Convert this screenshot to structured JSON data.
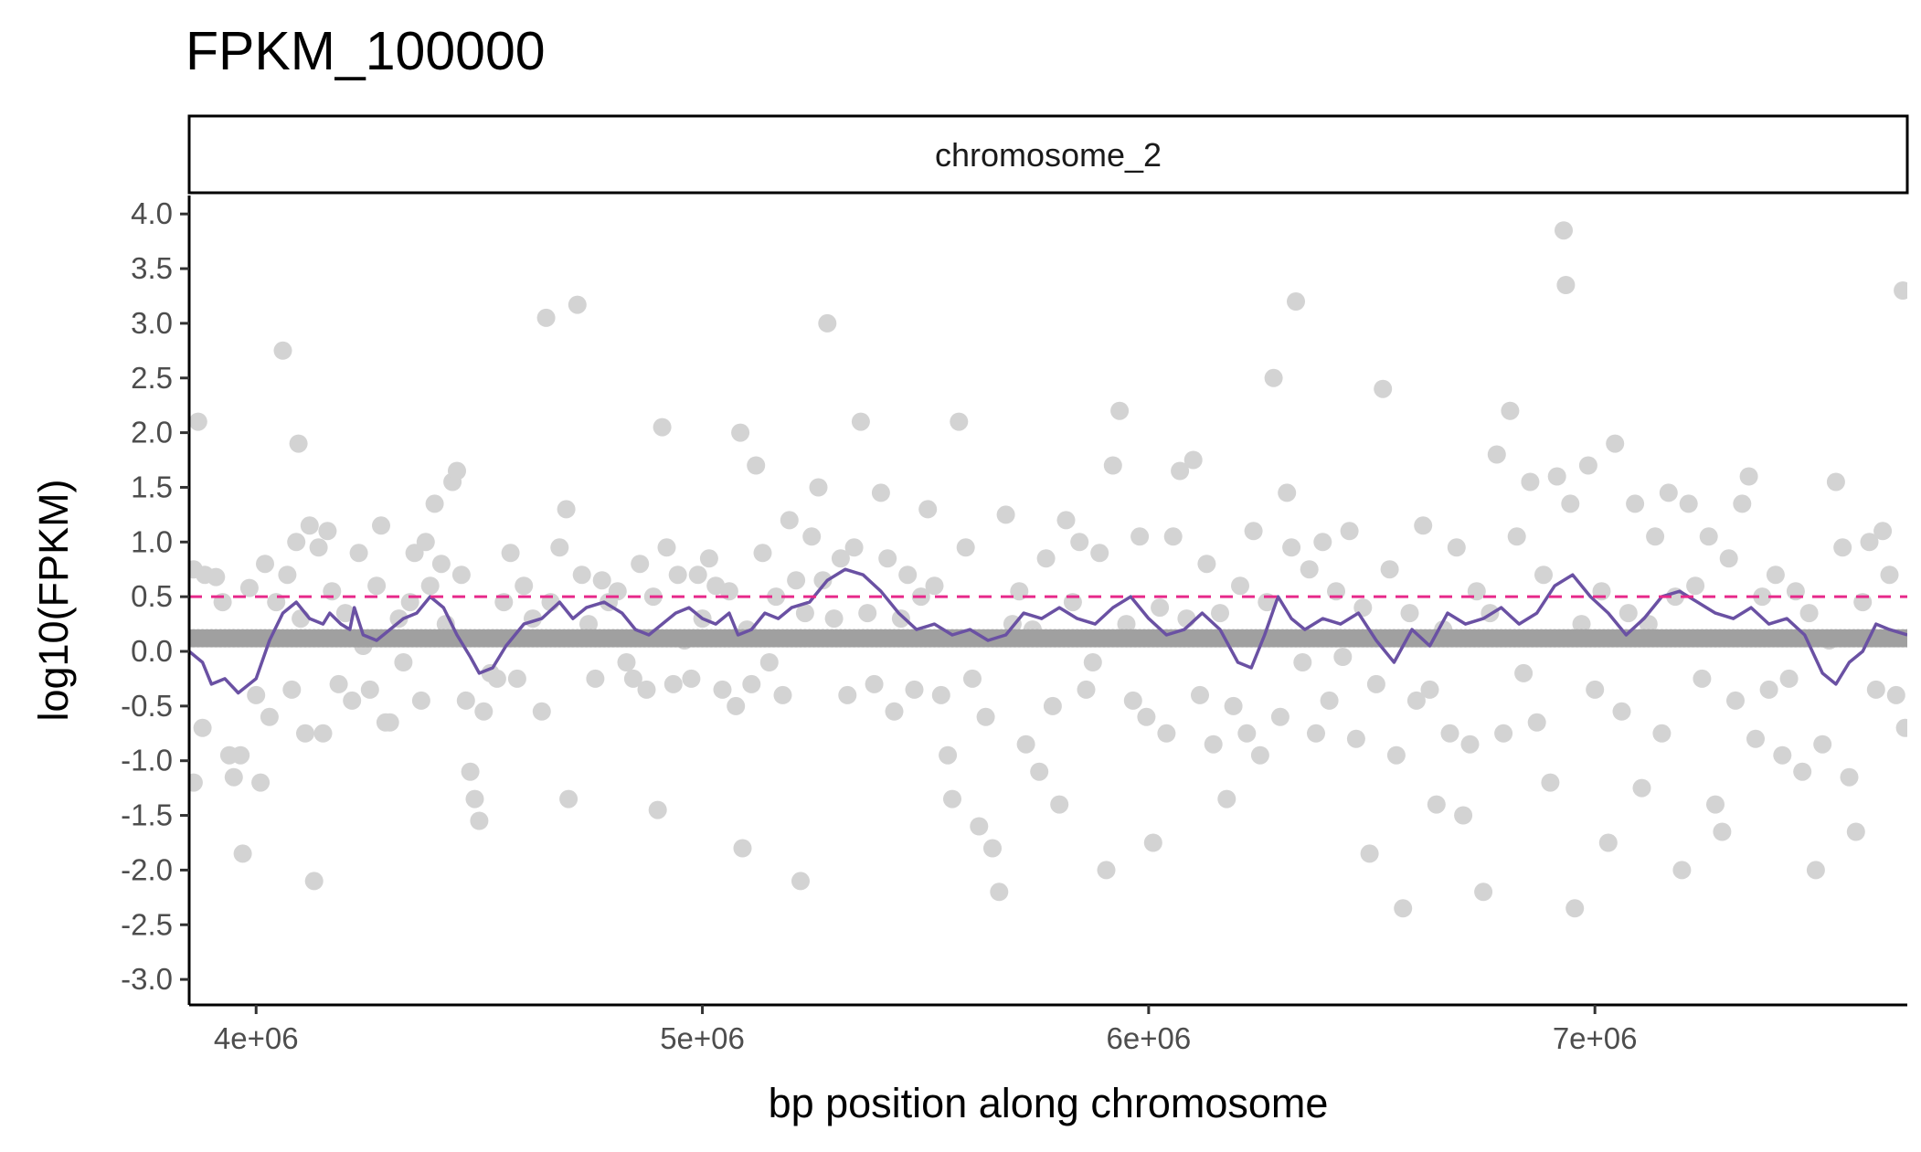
{
  "chart_data": {
    "type": "scatter",
    "title": "FPKM_100000",
    "facet_label": "chromosome_2",
    "xlabel": "bp position along chromosome",
    "ylabel": "log10(FPKM)",
    "xlim": [
      3850000,
      7700000
    ],
    "ylim": [
      -3.15,
      4.2
    ],
    "x_ticks": [
      4000000,
      5000000,
      6000000,
      7000000
    ],
    "x_tick_labels": [
      "4e+06",
      "5e+06",
      "6e+06",
      "7e+06"
    ],
    "y_ticks": [
      4.0,
      3.5,
      3.0,
      2.5,
      2.0,
      1.5,
      1.0,
      0.5,
      0.0,
      -0.5,
      -1.0,
      -1.5,
      -2.0,
      -2.5,
      -3.0
    ],
    "y_tick_labels": [
      "4.0",
      "3.5",
      "3.0",
      "2.5",
      "2.0",
      "1.5",
      "1.0",
      "0.5",
      "0.0",
      "-0.5",
      "-1.0",
      "-1.5",
      "-2.0",
      "-2.5",
      "-3.0"
    ],
    "grid": false,
    "threshold": 0.5,
    "colors": {
      "points_expressed": "#d3d3d3",
      "points_baseline": "#a0a0a0",
      "rolling_line": "#6a51a3",
      "rolling_line_above": "#e7298a",
      "threshold_line": "#e7298a"
    },
    "baseline_value": 0.12,
    "baseline_x_range": [
      3850000,
      7700000
    ],
    "points": [
      [
        3860000,
        0.75
      ],
      [
        3870000,
        2.1
      ],
      [
        3885000,
        0.7
      ],
      [
        3860000,
        -1.2
      ],
      [
        3880000,
        -0.7
      ],
      [
        3910000,
        0.68
      ],
      [
        3925000,
        0.45
      ],
      [
        3940000,
        -0.95
      ],
      [
        3950000,
        -1.15
      ],
      [
        3965000,
        -0.95
      ],
      [
        3970000,
        -1.85
      ],
      [
        3985000,
        0.58
      ],
      [
        4000000,
        -0.4
      ],
      [
        4010000,
        -1.2
      ],
      [
        4020000,
        0.8
      ],
      [
        4030000,
        -0.6
      ],
      [
        4045000,
        0.45
      ],
      [
        4060000,
        2.75
      ],
      [
        4070000,
        0.7
      ],
      [
        4080000,
        -0.35
      ],
      [
        4090000,
        1.0
      ],
      [
        4095000,
        1.9
      ],
      [
        4100000,
        0.3
      ],
      [
        4110000,
        -0.75
      ],
      [
        4120000,
        1.15
      ],
      [
        4130000,
        -2.1
      ],
      [
        4140000,
        0.95
      ],
      [
        4150000,
        -0.75
      ],
      [
        4160000,
        1.1
      ],
      [
        4170000,
        0.55
      ],
      [
        4185000,
        -0.3
      ],
      [
        4200000,
        0.35
      ],
      [
        4215000,
        -0.45
      ],
      [
        4230000,
        0.9
      ],
      [
        4240000,
        0.05
      ],
      [
        4255000,
        -0.35
      ],
      [
        4270000,
        0.6
      ],
      [
        4280000,
        1.15
      ],
      [
        4290000,
        -0.65
      ],
      [
        4300000,
        -0.65
      ],
      [
        4320000,
        0.3
      ],
      [
        4330000,
        -0.1
      ],
      [
        4345000,
        0.45
      ],
      [
        4355000,
        0.9
      ],
      [
        4370000,
        -0.45
      ],
      [
        4380000,
        1.0
      ],
      [
        4390000,
        0.6
      ],
      [
        4400000,
        1.35
      ],
      [
        4415000,
        0.8
      ],
      [
        4425000,
        0.25
      ],
      [
        4440000,
        1.55
      ],
      [
        4450000,
        1.65
      ],
      [
        4460000,
        0.7
      ],
      [
        4470000,
        -0.45
      ],
      [
        4480000,
        -1.1
      ],
      [
        4490000,
        -1.35
      ],
      [
        4500000,
        -1.55
      ],
      [
        4510000,
        -0.55
      ],
      [
        4525000,
        -0.2
      ],
      [
        4540000,
        -0.25
      ],
      [
        4555000,
        0.45
      ],
      [
        4570000,
        0.9
      ],
      [
        4585000,
        -0.25
      ],
      [
        4600000,
        0.6
      ],
      [
        4620000,
        0.3
      ],
      [
        4640000,
        -0.55
      ],
      [
        4650000,
        3.05
      ],
      [
        4660000,
        0.45
      ],
      [
        4680000,
        0.95
      ],
      [
        4695000,
        1.3
      ],
      [
        4700000,
        -1.35
      ],
      [
        4720000,
        3.17
      ],
      [
        4730000,
        0.7
      ],
      [
        4745000,
        0.25
      ],
      [
        4760000,
        -0.25
      ],
      [
        4775000,
        0.65
      ],
      [
        4790000,
        0.45
      ],
      [
        4810000,
        0.55
      ],
      [
        4830000,
        -0.1
      ],
      [
        4845000,
        -0.25
      ],
      [
        4860000,
        0.8
      ],
      [
        4875000,
        -0.35
      ],
      [
        4890000,
        0.5
      ],
      [
        4900000,
        -1.45
      ],
      [
        4910000,
        2.05
      ],
      [
        4920000,
        0.95
      ],
      [
        4935000,
        -0.3
      ],
      [
        4945000,
        0.7
      ],
      [
        4960000,
        0.1
      ],
      [
        4975000,
        -0.25
      ],
      [
        4990000,
        0.7
      ],
      [
        5000000,
        0.3
      ],
      [
        5015000,
        0.85
      ],
      [
        5030000,
        0.6
      ],
      [
        5045000,
        -0.35
      ],
      [
        5060000,
        0.55
      ],
      [
        5075000,
        -0.5
      ],
      [
        5085000,
        2.0
      ],
      [
        5090000,
        -1.8
      ],
      [
        5100000,
        0.2
      ],
      [
        5110000,
        -0.3
      ],
      [
        5120000,
        1.7
      ],
      [
        5135000,
        0.9
      ],
      [
        5150000,
        -0.1
      ],
      [
        5165000,
        0.5
      ],
      [
        5180000,
        -0.4
      ],
      [
        5195000,
        1.2
      ],
      [
        5210000,
        0.65
      ],
      [
        5220000,
        -2.1
      ],
      [
        5230000,
        0.35
      ],
      [
        5245000,
        1.05
      ],
      [
        5260000,
        1.5
      ],
      [
        5270000,
        0.65
      ],
      [
        5280000,
        3.0
      ],
      [
        5295000,
        0.3
      ],
      [
        5310000,
        0.85
      ],
      [
        5325000,
        -0.4
      ],
      [
        5340000,
        0.95
      ],
      [
        5355000,
        2.1
      ],
      [
        5370000,
        0.35
      ],
      [
        5385000,
        -0.3
      ],
      [
        5400000,
        1.45
      ],
      [
        5415000,
        0.85
      ],
      [
        5430000,
        -0.55
      ],
      [
        5445000,
        0.3
      ],
      [
        5460000,
        0.7
      ],
      [
        5475000,
        -0.35
      ],
      [
        5490000,
        0.5
      ],
      [
        5505000,
        1.3
      ],
      [
        5520000,
        0.6
      ],
      [
        5535000,
        -0.4
      ],
      [
        5550000,
        -0.95
      ],
      [
        5560000,
        -1.35
      ],
      [
        5575000,
        2.1
      ],
      [
        5590000,
        0.95
      ],
      [
        5605000,
        -0.25
      ],
      [
        5620000,
        -1.6
      ],
      [
        5635000,
        -0.6
      ],
      [
        5650000,
        -1.8
      ],
      [
        5665000,
        -2.2
      ],
      [
        5680000,
        1.25
      ],
      [
        5695000,
        0.25
      ],
      [
        5710000,
        0.55
      ],
      [
        5725000,
        -0.85
      ],
      [
        5740000,
        0.2
      ],
      [
        5755000,
        -1.1
      ],
      [
        5770000,
        0.85
      ],
      [
        5785000,
        -0.5
      ],
      [
        5800000,
        -1.4
      ],
      [
        5815000,
        1.2
      ],
      [
        5830000,
        0.45
      ],
      [
        5845000,
        1.0
      ],
      [
        5860000,
        -0.35
      ],
      [
        5875000,
        -0.1
      ],
      [
        5890000,
        0.9
      ],
      [
        5905000,
        -2.0
      ],
      [
        5920000,
        1.7
      ],
      [
        5935000,
        2.2
      ],
      [
        5950000,
        0.25
      ],
      [
        5965000,
        -0.45
      ],
      [
        5980000,
        1.05
      ],
      [
        5995000,
        -0.6
      ],
      [
        6010000,
        -1.75
      ],
      [
        6025000,
        0.4
      ],
      [
        6040000,
        -0.75
      ],
      [
        6055000,
        1.05
      ],
      [
        6070000,
        1.65
      ],
      [
        6085000,
        0.3
      ],
      [
        6100000,
        1.75
      ],
      [
        6115000,
        -0.4
      ],
      [
        6130000,
        0.8
      ],
      [
        6145000,
        -0.85
      ],
      [
        6160000,
        0.35
      ],
      [
        6175000,
        -1.35
      ],
      [
        6190000,
        -0.5
      ],
      [
        6205000,
        0.6
      ],
      [
        6220000,
        -0.75
      ],
      [
        6235000,
        1.1
      ],
      [
        6250000,
        -0.95
      ],
      [
        6265000,
        0.45
      ],
      [
        6280000,
        2.5
      ],
      [
        6295000,
        -0.6
      ],
      [
        6310000,
        1.45
      ],
      [
        6320000,
        0.95
      ],
      [
        6330000,
        3.2
      ],
      [
        6345000,
        -0.1
      ],
      [
        6360000,
        0.75
      ],
      [
        6375000,
        -0.75
      ],
      [
        6390000,
        1.0
      ],
      [
        6405000,
        -0.45
      ],
      [
        6420000,
        0.55
      ],
      [
        6435000,
        -0.05
      ],
      [
        6450000,
        1.1
      ],
      [
        6465000,
        -0.8
      ],
      [
        6480000,
        0.4
      ],
      [
        6495000,
        -1.85
      ],
      [
        6510000,
        -0.3
      ],
      [
        6525000,
        2.4
      ],
      [
        6540000,
        0.75
      ],
      [
        6555000,
        -0.95
      ],
      [
        6570000,
        -2.35
      ],
      [
        6585000,
        0.35
      ],
      [
        6600000,
        -0.45
      ],
      [
        6615000,
        1.15
      ],
      [
        6630000,
        -0.35
      ],
      [
        6645000,
        -1.4
      ],
      [
        6660000,
        0.2
      ],
      [
        6675000,
        -0.75
      ],
      [
        6690000,
        0.95
      ],
      [
        6705000,
        -1.5
      ],
      [
        6720000,
        -0.85
      ],
      [
        6735000,
        0.55
      ],
      [
        6750000,
        -2.2
      ],
      [
        6765000,
        0.35
      ],
      [
        6780000,
        1.8
      ],
      [
        6795000,
        -0.75
      ],
      [
        6810000,
        2.2
      ],
      [
        6825000,
        1.05
      ],
      [
        6840000,
        -0.2
      ],
      [
        6855000,
        1.55
      ],
      [
        6870000,
        -0.65
      ],
      [
        6885000,
        0.7
      ],
      [
        6900000,
        -1.2
      ],
      [
        6915000,
        1.6
      ],
      [
        6930000,
        3.85
      ],
      [
        6935000,
        3.35
      ],
      [
        6945000,
        1.35
      ],
      [
        6955000,
        -2.35
      ],
      [
        6970000,
        0.25
      ],
      [
        6985000,
        1.7
      ],
      [
        7000000,
        -0.35
      ],
      [
        7015000,
        0.55
      ],
      [
        7030000,
        -1.75
      ],
      [
        7045000,
        1.9
      ],
      [
        7060000,
        -0.55
      ],
      [
        7075000,
        0.35
      ],
      [
        7090000,
        1.35
      ],
      [
        7105000,
        -1.25
      ],
      [
        7120000,
        0.25
      ],
      [
        7135000,
        1.05
      ],
      [
        7150000,
        -0.75
      ],
      [
        7165000,
        1.45
      ],
      [
        7180000,
        0.5
      ],
      [
        7195000,
        -2.0
      ],
      [
        7210000,
        1.35
      ],
      [
        7225000,
        0.6
      ],
      [
        7240000,
        -0.25
      ],
      [
        7255000,
        1.05
      ],
      [
        7270000,
        -1.4
      ],
      [
        7285000,
        -1.65
      ],
      [
        7300000,
        0.85
      ],
      [
        7315000,
        -0.45
      ],
      [
        7330000,
        1.35
      ],
      [
        7345000,
        1.6
      ],
      [
        7360000,
        -0.8
      ],
      [
        7375000,
        0.5
      ],
      [
        7390000,
        -0.35
      ],
      [
        7405000,
        0.7
      ],
      [
        7420000,
        -0.95
      ],
      [
        7435000,
        -0.25
      ],
      [
        7450000,
        0.55
      ],
      [
        7465000,
        -1.1
      ],
      [
        7480000,
        0.35
      ],
      [
        7495000,
        -2.0
      ],
      [
        7510000,
        -0.85
      ],
      [
        7525000,
        0.1
      ],
      [
        7540000,
        1.55
      ],
      [
        7555000,
        0.95
      ],
      [
        7570000,
        -1.15
      ],
      [
        7585000,
        -1.65
      ],
      [
        7600000,
        0.45
      ],
      [
        7615000,
        1.0
      ],
      [
        7630000,
        -0.35
      ],
      [
        7645000,
        1.1
      ],
      [
        7660000,
        0.7
      ],
      [
        7675000,
        -0.4
      ],
      [
        7690000,
        3.3
      ],
      [
        7695000,
        -0.7
      ]
    ],
    "rolling_line": [
      [
        3850000,
        0.0
      ],
      [
        3880000,
        -0.1
      ],
      [
        3900000,
        -0.3
      ],
      [
        3930000,
        -0.25
      ],
      [
        3960000,
        -0.38
      ],
      [
        4000000,
        -0.25
      ],
      [
        4030000,
        0.1
      ],
      [
        4060000,
        0.35
      ],
      [
        4090000,
        0.45
      ],
      [
        4120000,
        0.3
      ],
      [
        4150000,
        0.25
      ],
      [
        4165000,
        0.35
      ],
      [
        4190000,
        0.25
      ],
      [
        4210000,
        0.2
      ],
      [
        4220000,
        0.4
      ],
      [
        4240000,
        0.15
      ],
      [
        4270000,
        0.1
      ],
      [
        4300000,
        0.2
      ],
      [
        4330000,
        0.3
      ],
      [
        4360000,
        0.35
      ],
      [
        4390000,
        0.5
      ],
      [
        4420000,
        0.4
      ],
      [
        4450000,
        0.15
      ],
      [
        4480000,
        -0.05
      ],
      [
        4500000,
        -0.2
      ],
      [
        4530000,
        -0.15
      ],
      [
        4560000,
        0.05
      ],
      [
        4600000,
        0.25
      ],
      [
        4640000,
        0.3
      ],
      [
        4680000,
        0.45
      ],
      [
        4710000,
        0.3
      ],
      [
        4740000,
        0.4
      ],
      [
        4780000,
        0.45
      ],
      [
        4820000,
        0.35
      ],
      [
        4850000,
        0.2
      ],
      [
        4880000,
        0.15
      ],
      [
        4910000,
        0.25
      ],
      [
        4940000,
        0.35
      ],
      [
        4970000,
        0.4
      ],
      [
        5000000,
        0.3
      ],
      [
        5030000,
        0.25
      ],
      [
        5060000,
        0.35
      ],
      [
        5080000,
        0.15
      ],
      [
        5110000,
        0.2
      ],
      [
        5140000,
        0.35
      ],
      [
        5170000,
        0.3
      ],
      [
        5200000,
        0.4
      ],
      [
        5240000,
        0.45
      ],
      [
        5280000,
        0.65
      ],
      [
        5320000,
        0.75
      ],
      [
        5360000,
        0.7
      ],
      [
        5400000,
        0.55
      ],
      [
        5440000,
        0.35
      ],
      [
        5480000,
        0.2
      ],
      [
        5520000,
        0.25
      ],
      [
        5560000,
        0.15
      ],
      [
        5600000,
        0.2
      ],
      [
        5640000,
        0.1
      ],
      [
        5680000,
        0.15
      ],
      [
        5720000,
        0.35
      ],
      [
        5760000,
        0.3
      ],
      [
        5800000,
        0.4
      ],
      [
        5840000,
        0.3
      ],
      [
        5880000,
        0.25
      ],
      [
        5920000,
        0.4
      ],
      [
        5960000,
        0.5
      ],
      [
        6000000,
        0.3
      ],
      [
        6040000,
        0.15
      ],
      [
        6080000,
        0.2
      ],
      [
        6120000,
        0.35
      ],
      [
        6160000,
        0.2
      ],
      [
        6200000,
        -0.1
      ],
      [
        6230000,
        -0.15
      ],
      [
        6260000,
        0.15
      ],
      [
        6290000,
        0.5
      ],
      [
        6320000,
        0.3
      ],
      [
        6350000,
        0.2
      ],
      [
        6390000,
        0.3
      ],
      [
        6430000,
        0.25
      ],
      [
        6470000,
        0.35
      ],
      [
        6510000,
        0.1
      ],
      [
        6550000,
        -0.1
      ],
      [
        6590000,
        0.2
      ],
      [
        6630000,
        0.05
      ],
      [
        6670000,
        0.35
      ],
      [
        6710000,
        0.25
      ],
      [
        6750000,
        0.3
      ],
      [
        6790000,
        0.4
      ],
      [
        6830000,
        0.25
      ],
      [
        6870000,
        0.35
      ],
      [
        6910000,
        0.6
      ],
      [
        6950000,
        0.7
      ],
      [
        6990000,
        0.5
      ],
      [
        7030000,
        0.35
      ],
      [
        7070000,
        0.15
      ],
      [
        7110000,
        0.3
      ],
      [
        7150000,
        0.5
      ],
      [
        7190000,
        0.55
      ],
      [
        7230000,
        0.45
      ],
      [
        7270000,
        0.35
      ],
      [
        7310000,
        0.3
      ],
      [
        7350000,
        0.4
      ],
      [
        7390000,
        0.25
      ],
      [
        7430000,
        0.3
      ],
      [
        7470000,
        0.15
      ],
      [
        7510000,
        -0.2
      ],
      [
        7540000,
        -0.3
      ],
      [
        7570000,
        -0.1
      ],
      [
        7600000,
        0.0
      ],
      [
        7630000,
        0.25
      ],
      [
        7660000,
        0.2
      ],
      [
        7700000,
        0.15
      ]
    ]
  }
}
